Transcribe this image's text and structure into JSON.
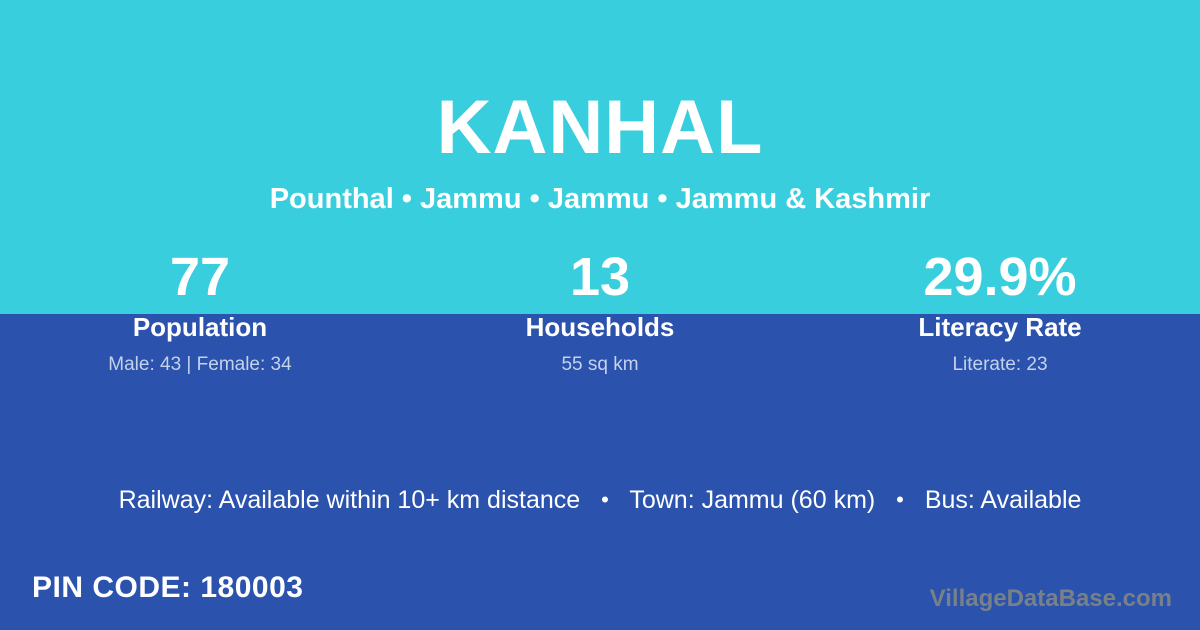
{
  "page": {
    "title": "KANHAL",
    "subtitle": "Pounthal • Jammu • Jammu • Jammu & Kashmir"
  },
  "colors": {
    "top_bg": "#39CEDD",
    "bottom_bg": "#2B52AC",
    "text": "#FFFFFF",
    "muted_text": "#C5D2EC",
    "watermark": "#788089"
  },
  "stats": [
    {
      "value": "77",
      "label": "Population",
      "detail": "Male: 43 | Female: 34"
    },
    {
      "value": "13",
      "label": "Households",
      "detail": "55 sq km"
    },
    {
      "value": "29.9%",
      "label": "Literacy Rate",
      "detail": "Literate: 23"
    }
  ],
  "footer_info": {
    "segments": [
      "Railway: Available within 10+ km distance",
      "Town: Jammu (60 km)",
      "Bus: Available"
    ],
    "separator": "•"
  },
  "pin_code": "PIN CODE: 180003",
  "watermark": "VillageDataBase.com"
}
